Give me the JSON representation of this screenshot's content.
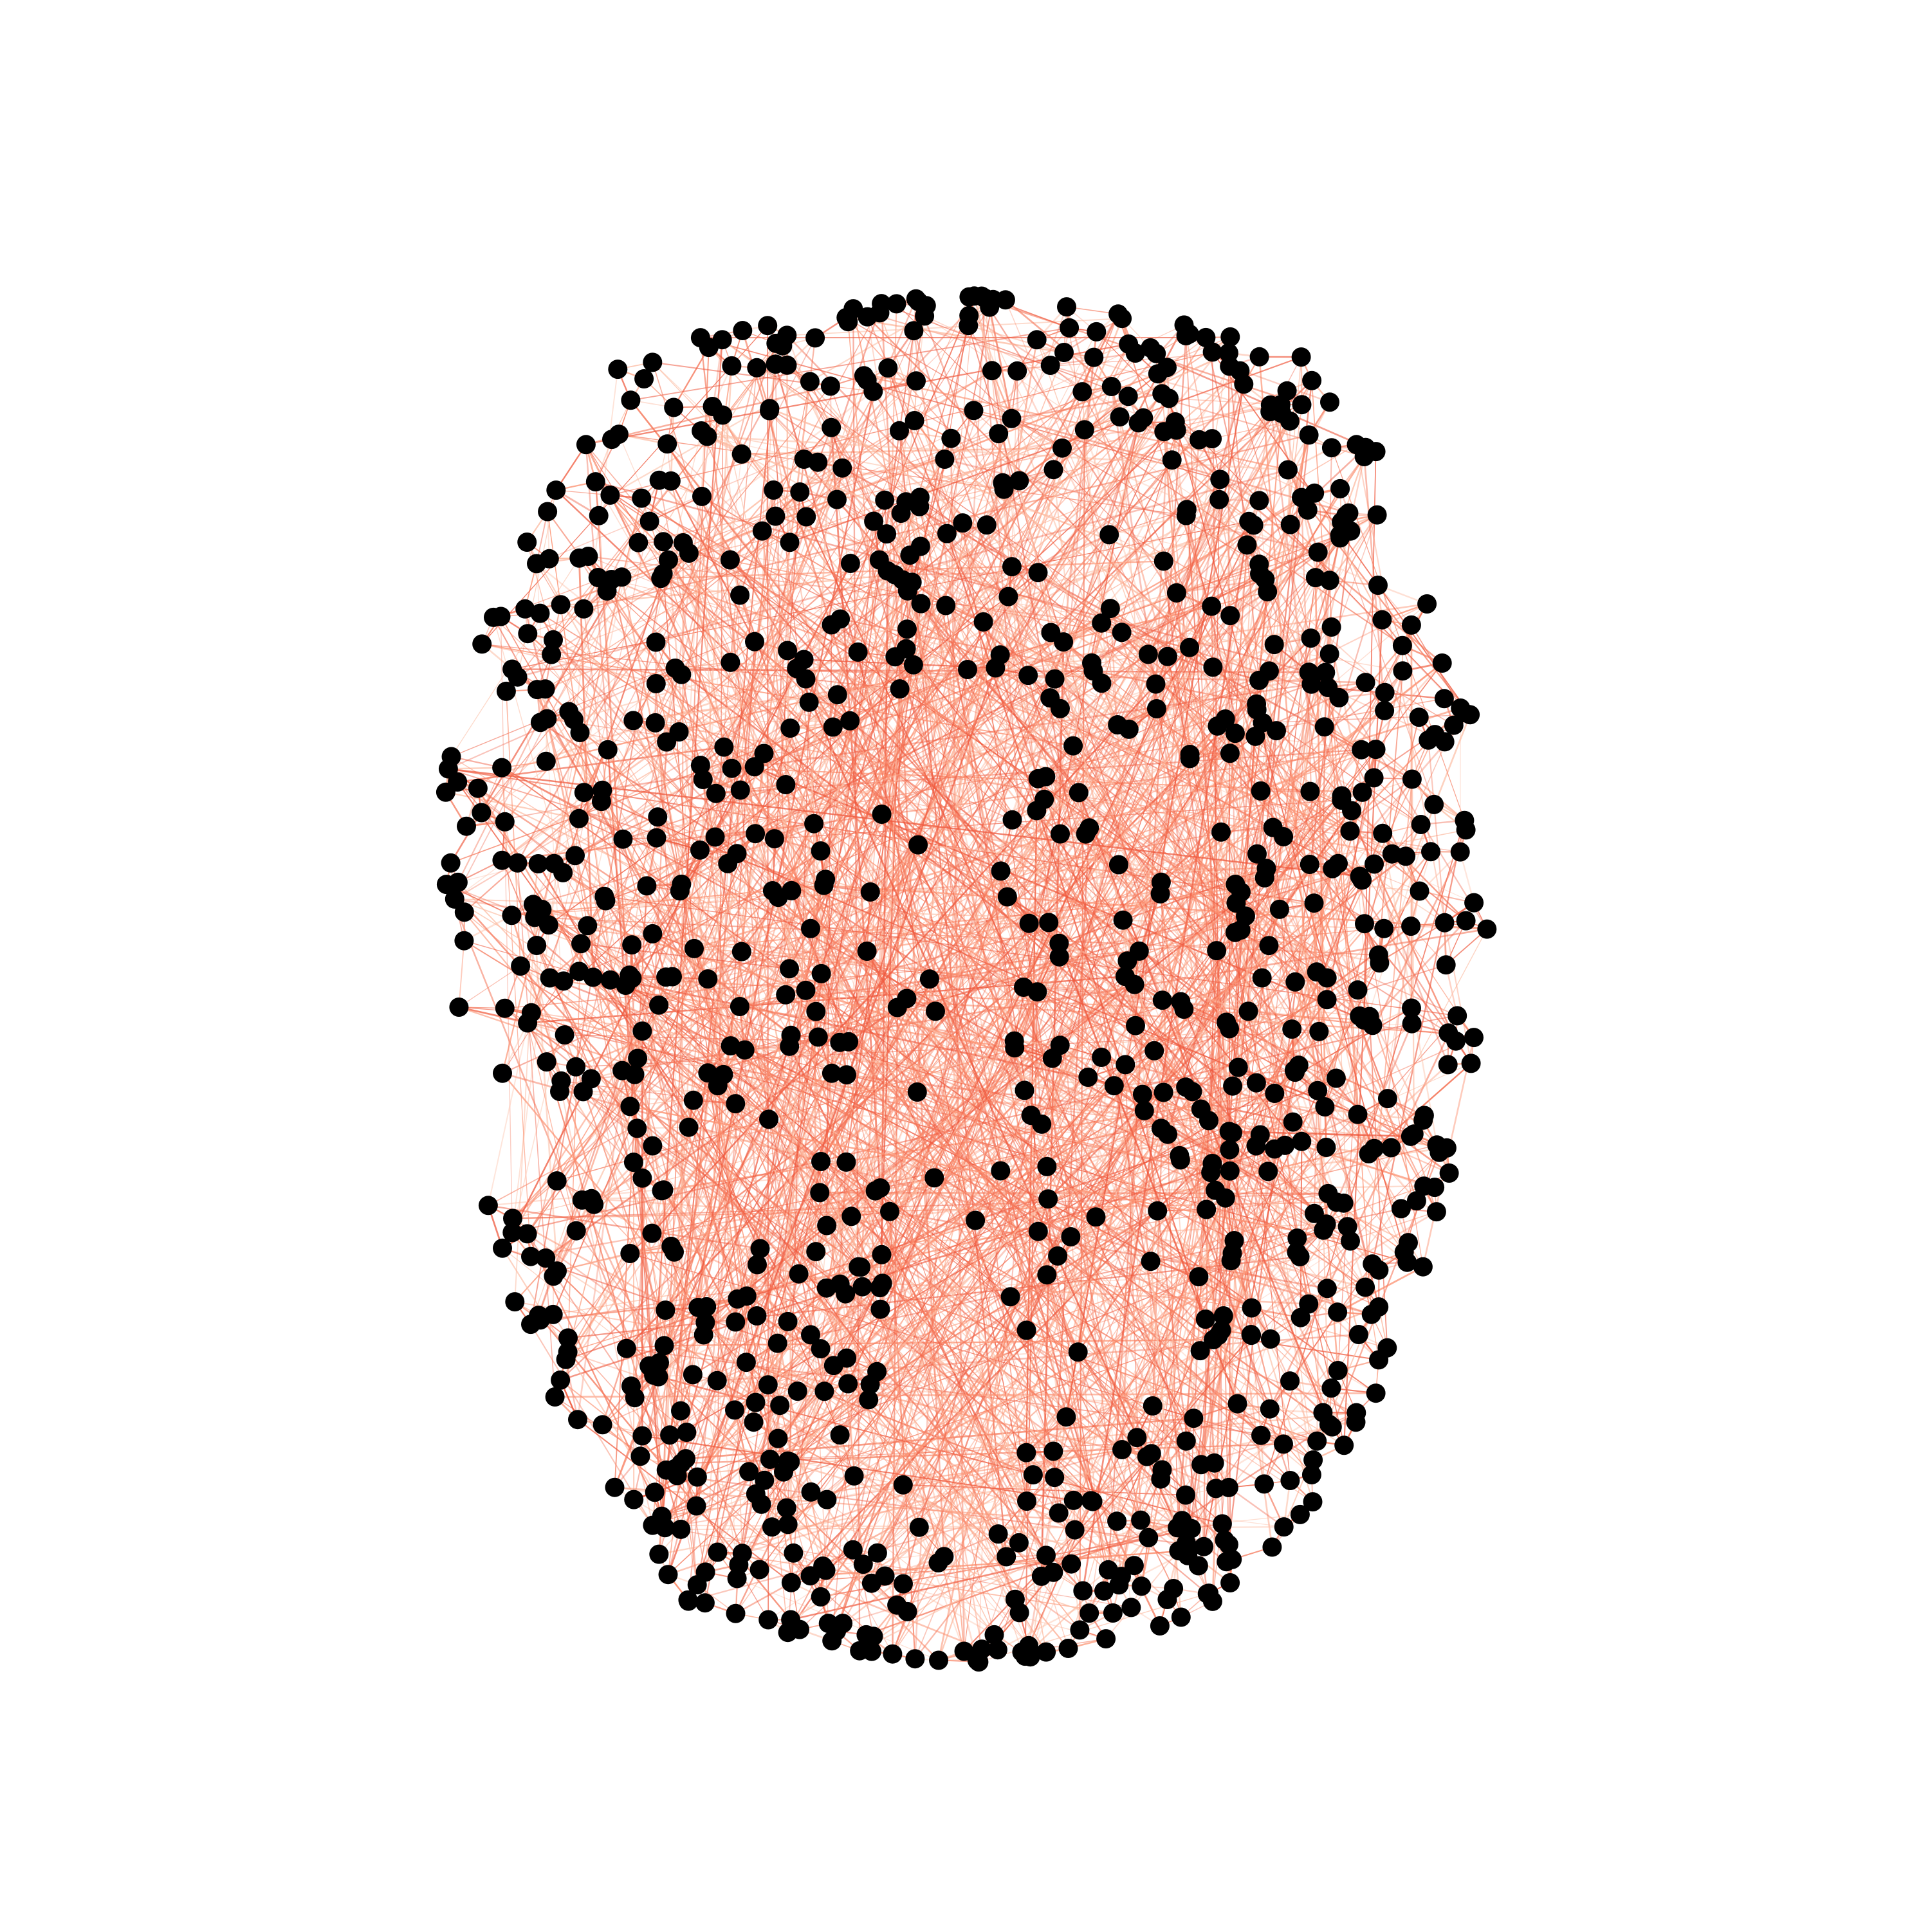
{
  "figure": {
    "kind": "brain-connectivity-network",
    "view": "axial-top-down",
    "background_color": "#ffffff",
    "node_color": "#000000",
    "edge_colors": [
      "#fcbba1",
      "#fc9272",
      "#f5785b",
      "#ef5a3f"
    ],
    "grid": false,
    "legend": false,
    "title": "",
    "node_count_shown": 980
  }
}
